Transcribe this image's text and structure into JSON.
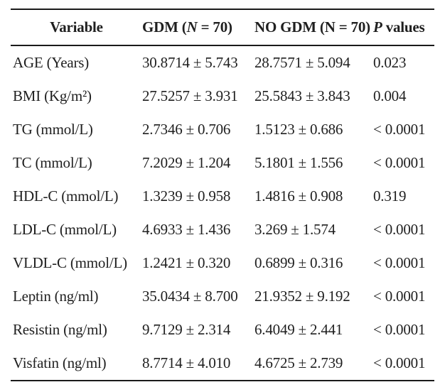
{
  "colors": {
    "text": "#1f1f1f",
    "rule": "#1a1a1a",
    "background": "#ffffff"
  },
  "table": {
    "header": {
      "variable": "Variable",
      "gdm": {
        "pre": "GDM (",
        "n": "N",
        "post": " = 70)"
      },
      "no_gdm": "NO GDM (N = 70)",
      "p_values": {
        "p": "P",
        "rest": " values"
      }
    },
    "rows": [
      {
        "variable": "AGE (Years)",
        "gdm": "30.8714 ± 5.743",
        "no_gdm": "28.7571 ± 5.094",
        "p": "0.023"
      },
      {
        "variable": "BMI (Kg/m²)",
        "gdm": "27.5257 ± 3.931",
        "no_gdm": "25.5843 ± 3.843",
        "p": "0.004"
      },
      {
        "variable": "TG (mmol/L)",
        "gdm": "2.7346 ± 0.706",
        "no_gdm": "1.5123 ± 0.686",
        "p": "< 0.0001"
      },
      {
        "variable": "TC (mmol/L)",
        "gdm": "7.2029 ± 1.204",
        "no_gdm": "5.1801 ± 1.556",
        "p": "< 0.0001"
      },
      {
        "variable": "HDL-C (mmol/L)",
        "gdm": "1.3239 ± 0.958",
        "no_gdm": "1.4816 ± 0.908",
        "p": "0.319"
      },
      {
        "variable": "LDL-C (mmol/L)",
        "gdm": "4.6933 ± 1.436",
        "no_gdm": "3.269 ± 1.574",
        "p": "< 0.0001"
      },
      {
        "variable": "VLDL-C (mmol/L)",
        "gdm": "1.2421 ± 0.320",
        "no_gdm": "0.6899 ± 0.316",
        "p": "< 0.0001"
      },
      {
        "variable": "Leptin (ng/ml)",
        "gdm": "35.0434 ± 8.700",
        "no_gdm": "21.9352 ± 9.192",
        "p": "< 0.0001"
      },
      {
        "variable": "Resistin (ng/ml)",
        "gdm": "9.7129 ± 2.314",
        "no_gdm": "6.4049 ± 2.441",
        "p": "< 0.0001"
      },
      {
        "variable": "Visfatin (ng/ml)",
        "gdm": "8.7714 ± 4.010",
        "no_gdm": "4.6725 ± 2.739",
        "p": "< 0.0001"
      }
    ]
  }
}
